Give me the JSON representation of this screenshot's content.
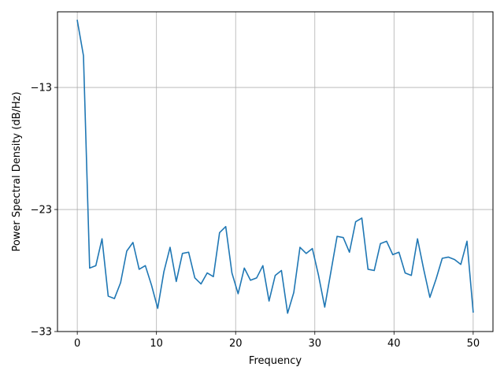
{
  "chart_data": {
    "type": "line",
    "title": "",
    "xlabel": "Frequency",
    "ylabel": "Power Spectral Density (dB/Hz)",
    "xlim": [
      -2.5,
      52.5
    ],
    "ylim": [
      -33,
      -6.8
    ],
    "xticks": [
      0,
      10,
      20,
      30,
      40,
      50
    ],
    "xtick_labels": [
      "0",
      "10",
      "20",
      "30",
      "40",
      "50"
    ],
    "yticks": [
      -13,
      -23,
      -33
    ],
    "ytick_labels": [
      "−13",
      "−23",
      "−33"
    ],
    "grid": true,
    "line_color": "#1f77b4",
    "x": [
      0,
      0.78125,
      1.5625,
      2.34375,
      3.125,
      3.90625,
      4.6875,
      5.46875,
      6.25,
      7.03125,
      7.8125,
      8.59375,
      9.375,
      10.15625,
      10.9375,
      11.71875,
      12.5,
      13.28125,
      14.0625,
      14.84375,
      15.625,
      16.40625,
      17.1875,
      17.96875,
      18.75,
      19.53125,
      20.3125,
      21.09375,
      21.875,
      22.65625,
      23.4375,
      24.21875,
      25.0,
      25.78125,
      26.5625,
      27.34375,
      28.125,
      28.90625,
      29.6875,
      30.46875,
      31.25,
      32.03125,
      32.8125,
      33.59375,
      34.375,
      35.15625,
      35.9375,
      36.71875,
      37.5,
      38.28125,
      39.0625,
      39.84375,
      40.625,
      41.40625,
      42.1875,
      42.96875,
      43.75,
      44.53125,
      45.3125,
      46.09375,
      46.875,
      47.65625,
      48.4375,
      49.21875,
      50.0
    ],
    "series": [
      {
        "values": [
          -7.5,
          -10.4,
          -27.8,
          -27.6,
          -25.4,
          -30.1,
          -30.3,
          -29.0,
          -26.4,
          -25.7,
          -27.9,
          -27.6,
          -29.2,
          -31.1,
          -28.1,
          -26.1,
          -28.9,
          -26.6,
          -26.5,
          -28.6,
          -29.1,
          -28.2,
          -28.5,
          -24.9,
          -24.4,
          -28.2,
          -29.9,
          -27.8,
          -28.8,
          -28.6,
          -27.6,
          -30.5,
          -28.4,
          -28.0,
          -31.5,
          -29.8,
          -26.1,
          -26.6,
          -26.2,
          -28.4,
          -31.0,
          -28.1,
          -25.2,
          -25.3,
          -26.5,
          -24.0,
          -23.7,
          -27.9,
          -28.0,
          -25.8,
          -25.6,
          -26.7,
          -26.5,
          -28.2,
          -28.4,
          -25.4,
          -27.9,
          -30.2,
          -28.7,
          -27.0,
          -26.9,
          -27.1,
          -27.5,
          -25.6,
          -31.4
        ]
      }
    ]
  }
}
